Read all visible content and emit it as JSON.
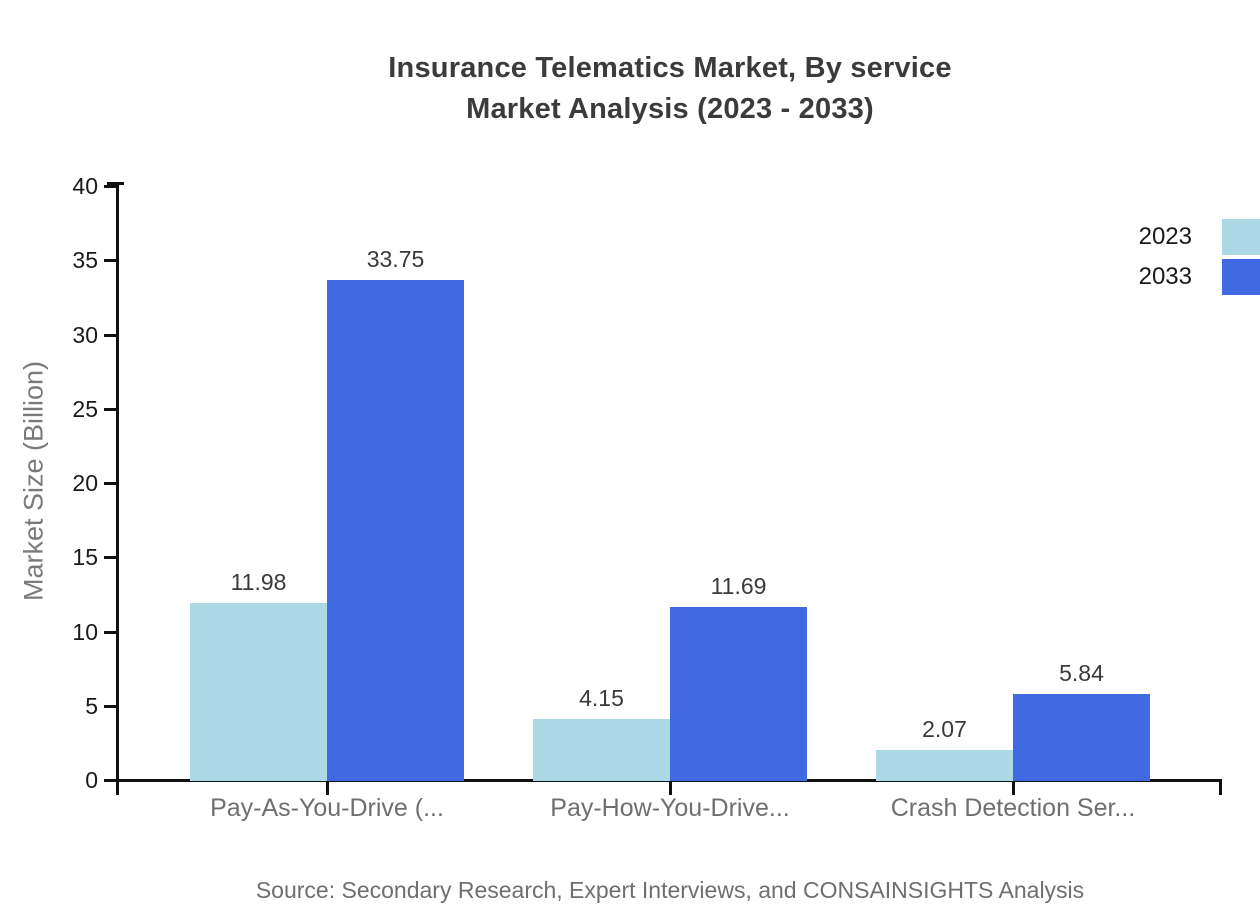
{
  "chart_data": {
    "type": "bar",
    "title_line1": "Insurance Telematics Market, By service",
    "title_line2": "Market Analysis (2023 - 2033)",
    "ylabel": "Market Size (Billion)",
    "categories": [
      "Pay-As-You-Drive (...",
      "Pay-How-You-Drive...",
      "Crash Detection Ser..."
    ],
    "series": [
      {
        "name": "2023",
        "color": "#ADD8E6",
        "values": [
          11.98,
          4.15,
          2.07
        ]
      },
      {
        "name": "2033",
        "color": "#4169E1",
        "values": [
          33.75,
          11.69,
          5.84
        ]
      }
    ],
    "ylim": [
      0,
      40
    ],
    "yticks": [
      0,
      5,
      10,
      15,
      20,
      25,
      30,
      35,
      40
    ],
    "grid": false,
    "legend_position": "top-right",
    "axis_color": "#111111",
    "source": "Source: Secondary Research, Expert Interviews, and CONSAINSIGHTS Analysis"
  }
}
